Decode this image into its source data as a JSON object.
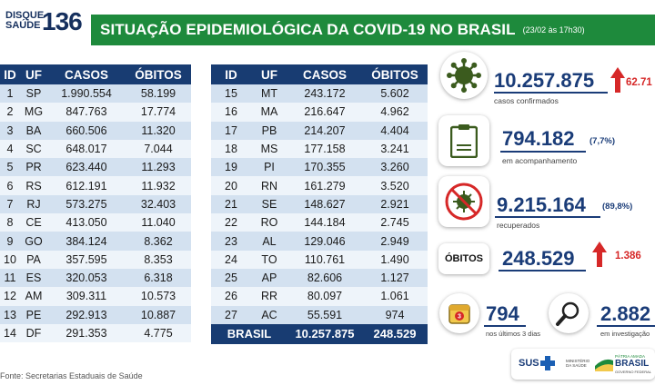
{
  "header": {
    "logo_line1": "DISQUE",
    "logo_line2": "SAÚDE",
    "logo_number": "136",
    "title": "SITUAÇÃO EPIDEMIOLÓGICA DA COVID-19 NO BRASIL",
    "subtitle": "(23/02 às 17h30)"
  },
  "table_headers": [
    "ID",
    "UF",
    "CASOS",
    "ÓBITOS"
  ],
  "rows_left": [
    [
      "1",
      "SP",
      "1.990.554",
      "58.199"
    ],
    [
      "2",
      "MG",
      "847.763",
      "17.774"
    ],
    [
      "3",
      "BA",
      "660.506",
      "11.320"
    ],
    [
      "4",
      "SC",
      "648.017",
      "7.044"
    ],
    [
      "5",
      "PR",
      "623.440",
      "11.293"
    ],
    [
      "6",
      "RS",
      "612.191",
      "11.932"
    ],
    [
      "7",
      "RJ",
      "573.275",
      "32.403"
    ],
    [
      "8",
      "CE",
      "413.050",
      "11.040"
    ],
    [
      "9",
      "GO",
      "384.124",
      "8.362"
    ],
    [
      "10",
      "PA",
      "357.595",
      "8.353"
    ],
    [
      "11",
      "ES",
      "320.053",
      "6.318"
    ],
    [
      "12",
      "AM",
      "309.311",
      "10.573"
    ],
    [
      "13",
      "PE",
      "292.913",
      "10.887"
    ],
    [
      "14",
      "DF",
      "291.353",
      "4.775"
    ]
  ],
  "rows_right": [
    [
      "15",
      "MT",
      "243.172",
      "5.602"
    ],
    [
      "16",
      "MA",
      "216.647",
      "4.962"
    ],
    [
      "17",
      "PB",
      "214.207",
      "4.404"
    ],
    [
      "18",
      "MS",
      "177.158",
      "3.241"
    ],
    [
      "19",
      "PI",
      "170.355",
      "3.260"
    ],
    [
      "20",
      "RN",
      "161.279",
      "3.520"
    ],
    [
      "21",
      "SE",
      "148.627",
      "2.921"
    ],
    [
      "22",
      "RO",
      "144.184",
      "2.745"
    ],
    [
      "23",
      "AL",
      "129.046",
      "2.949"
    ],
    [
      "24",
      "TO",
      "110.761",
      "1.490"
    ],
    [
      "25",
      "AP",
      "82.606",
      "1.127"
    ],
    [
      "26",
      "RR",
      "80.097",
      "1.061"
    ],
    [
      "27",
      "AC",
      "55.591",
      "974"
    ]
  ],
  "total": {
    "label": "BRASIL",
    "casos": "10.257.875",
    "obitos": "248.529"
  },
  "stats": {
    "confirmed": {
      "value": "10.257.875",
      "increase": "62.71",
      "label": "casos confirmados"
    },
    "monitoring": {
      "value": "794.182",
      "pct": "(7,7%)",
      "label": "em acompanhamento"
    },
    "recovered": {
      "value": "9.215.164",
      "pct": "(89,8%)",
      "label": "recuperados"
    },
    "deaths": {
      "badge": "ÓBITOS",
      "value": "248.529",
      "increase": "1.386"
    },
    "recent": {
      "value": "794",
      "calendar_num": "3",
      "label": "nos últimos 3 dias"
    },
    "investigation": {
      "value": "2.882",
      "label": "em investigação"
    }
  },
  "source": "Fonte: Secretarias Estaduais de Saúde",
  "footer": {
    "sus": "SUS",
    "ministry": "MINISTÉRIO DA SAÚDE",
    "gov_top": "PÁTRIA AMADA",
    "gov": "BRASIL",
    "gov_sub": "GOVERNO FEDERAL"
  },
  "icons": [
    "virus-icon",
    "clipboard-icon",
    "crossed-virus-icon",
    "calendar-icon",
    "magnifier-icon",
    "up-arrow-icon"
  ],
  "colors": {
    "title_green": "#1e8a3c",
    "header_navy": "#183c72",
    "row_blue": "#d3e1f0",
    "row_light": "#eef4fa",
    "number_blue": "#1a3c78",
    "alert_red": "#d62828"
  }
}
